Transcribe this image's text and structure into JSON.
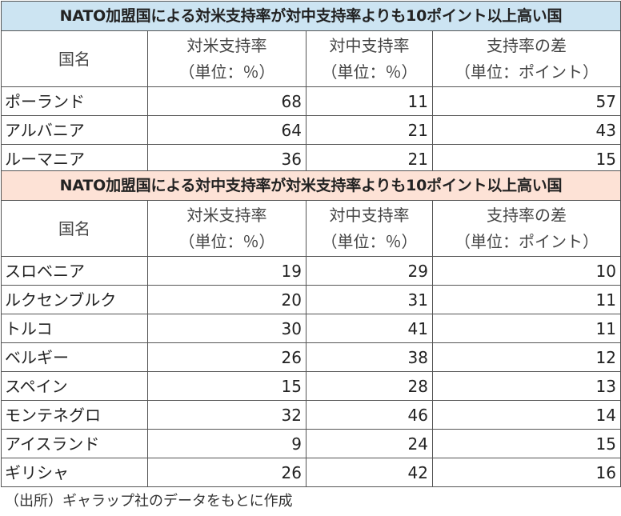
{
  "table1": {
    "title": "NATO加盟国による対米支持率が対中支持率よりも10ポイント以上高い国",
    "headers": {
      "country": "国名",
      "us_line1": "対米支持率",
      "us_line2": "（単位：％）",
      "cn_line1": "対中支持率",
      "cn_line2": "（単位：％）",
      "diff_line1": "支持率の差",
      "diff_line2": "（単位：ポイント）"
    },
    "rows": [
      {
        "country": "ポーランド",
        "us": "68",
        "cn": "11",
        "diff": "57"
      },
      {
        "country": "アルバニア",
        "us": "64",
        "cn": "21",
        "diff": "43"
      },
      {
        "country": "ルーマニア",
        "us": "36",
        "cn": "21",
        "diff": "15"
      }
    ]
  },
  "table2": {
    "title": "NATO加盟国による対中支持率が対米支持率よりも10ポイント以上高い国",
    "headers": {
      "country": "国名",
      "us_line1": "対米支持率",
      "us_line2": "（単位：％）",
      "cn_line1": "対中支持率",
      "cn_line2": "（単位：％）",
      "diff_line1": "支持率の差",
      "diff_line2": "（単位：ポイント）"
    },
    "rows": [
      {
        "country": "スロベニア",
        "us": "19",
        "cn": "29",
        "diff": "10"
      },
      {
        "country": "ルクセンブルク",
        "us": "20",
        "cn": "31",
        "diff": "11"
      },
      {
        "country": "トルコ",
        "us": "30",
        "cn": "41",
        "diff": "11"
      },
      {
        "country": "ベルギー",
        "us": "26",
        "cn": "38",
        "diff": "12"
      },
      {
        "country": "スペイン",
        "us": "15",
        "cn": "28",
        "diff": "13"
      },
      {
        "country": "モンテネグロ",
        "us": "32",
        "cn": "46",
        "diff": "14"
      },
      {
        "country": "アイスランド",
        "us": "9",
        "cn": "24",
        "diff": "15"
      },
      {
        "country": "ギリシャ",
        "us": "26",
        "cn": "42",
        "diff": "16"
      }
    ]
  },
  "source": "（出所）ギャラップ社のデータをもとに作成",
  "colors": {
    "table1_title_bg": "#cce4f2",
    "table2_title_bg": "#fde2d6",
    "border": "#555555"
  }
}
